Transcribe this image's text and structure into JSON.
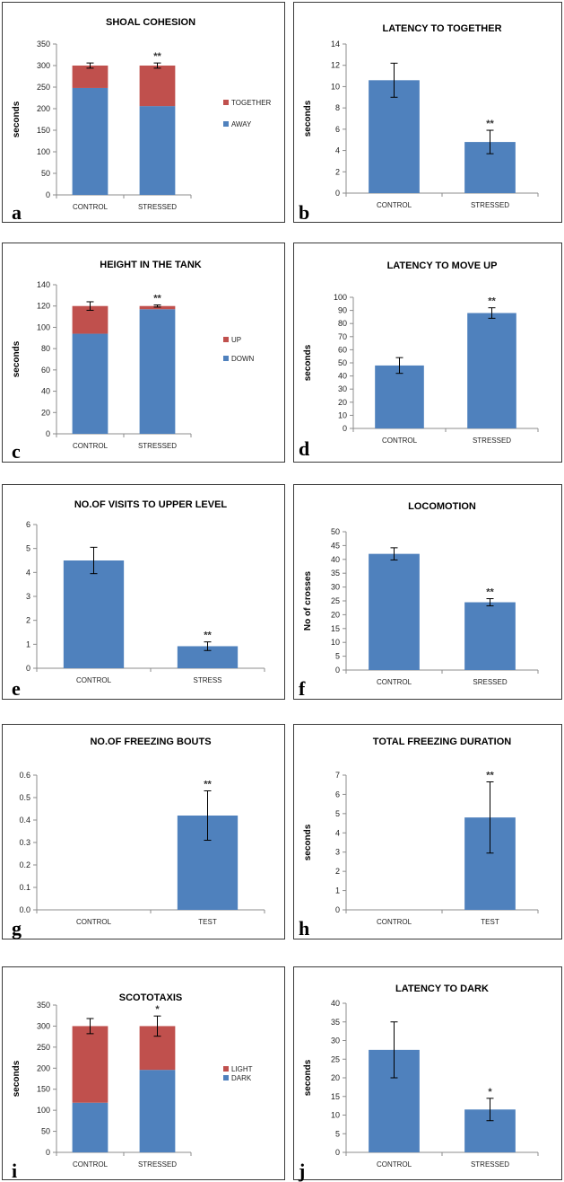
{
  "colors": {
    "bar": "#4f81bd",
    "bar_top": "#c0504d",
    "axis": "#8c8c8c",
    "error": "#000000"
  },
  "chart_data": [
    {
      "panel": "a",
      "type": "bar",
      "stacked": true,
      "title": "SHOAL COHESION",
      "ylabel": "seconds",
      "categories": [
        "CONTROL",
        "STRESSED"
      ],
      "ylim": [
        0,
        350
      ],
      "ystep": 50,
      "series": [
        {
          "name": "AWAY",
          "values": [
            248,
            206
          ]
        },
        {
          "name": "TOGETHER",
          "values": [
            52,
            94
          ]
        }
      ],
      "error": [
        6,
        6
      ],
      "sig": [
        "",
        "**"
      ],
      "legend": "right"
    },
    {
      "panel": "b",
      "type": "bar",
      "title": "LATENCY TO TOGETHER",
      "ylabel": "seconds",
      "categories": [
        "CONTROL",
        "STRESSED"
      ],
      "ylim": [
        0,
        14
      ],
      "ystep": 2,
      "series": [
        {
          "values": [
            10.6,
            4.8
          ]
        }
      ],
      "error": [
        1.6,
        1.1
      ],
      "sig": [
        "",
        "**"
      ]
    },
    {
      "panel": "c",
      "type": "bar",
      "stacked": true,
      "title": "HEIGHT IN THE TANK",
      "ylabel": "seconds",
      "categories": [
        "CONTROL",
        "STRESSED"
      ],
      "ylim": [
        0,
        140
      ],
      "ystep": 20,
      "series": [
        {
          "name": "DOWN",
          "values": [
            94,
            117
          ]
        },
        {
          "name": "UP",
          "values": [
            26,
            3
          ]
        }
      ],
      "error": [
        4,
        1
      ],
      "sig": [
        "",
        "**"
      ],
      "legend": "right"
    },
    {
      "panel": "d",
      "type": "bar",
      "title": "LATENCY TO MOVE UP",
      "ylabel": "seconds",
      "categories": [
        "CONTROL",
        "STRESSED"
      ],
      "ylim": [
        0,
        100
      ],
      "ystep": 10,
      "series": [
        {
          "values": [
            48,
            88
          ]
        }
      ],
      "error": [
        6,
        4
      ],
      "sig": [
        "",
        "**"
      ]
    },
    {
      "panel": "e",
      "type": "bar",
      "title": "NO.OF VISITS TO UPPER LEVEL",
      "ylabel": "",
      "categories": [
        "CONTROL",
        "STRESS"
      ],
      "ylim": [
        0,
        6
      ],
      "ystep": 1,
      "series": [
        {
          "values": [
            4.5,
            0.92
          ]
        }
      ],
      "error": [
        0.55,
        0.18
      ],
      "sig": [
        "",
        "**"
      ]
    },
    {
      "panel": "f",
      "type": "bar",
      "title": "LOCOMOTION",
      "ylabel": "No of crosses",
      "categories": [
        "CONTROL",
        "SRESSED"
      ],
      "ylim": [
        0,
        50
      ],
      "ystep": 5,
      "series": [
        {
          "values": [
            42,
            24.5
          ]
        }
      ],
      "error": [
        2.2,
        1.3
      ],
      "sig": [
        "",
        "**"
      ]
    },
    {
      "panel": "g",
      "type": "bar",
      "title": "NO.OF FREEZING BOUTS",
      "ylabel": "",
      "categories": [
        "CONTROL",
        "TEST"
      ],
      "ylim": [
        0,
        0.6
      ],
      "ystep": 0.1,
      "series": [
        {
          "values": [
            0,
            0.42
          ]
        }
      ],
      "error": [
        0,
        0.11
      ],
      "sig": [
        "",
        "**"
      ]
    },
    {
      "panel": "h",
      "type": "bar",
      "title": "TOTAL FREEZING DURATION",
      "ylabel": "seconds",
      "categories": [
        "CONTROL",
        "TEST"
      ],
      "ylim": [
        0,
        7
      ],
      "ystep": 1,
      "series": [
        {
          "values": [
            0,
            4.8
          ]
        }
      ],
      "error": [
        0,
        1.85
      ],
      "sig": [
        "",
        "**"
      ]
    },
    {
      "panel": "i",
      "type": "bar",
      "stacked": true,
      "title": "SCOTOTAXIS",
      "ylabel": "seconds",
      "categories": [
        "CONTROL",
        "STRESSED"
      ],
      "ylim": [
        0,
        350
      ],
      "ystep": 50,
      "series": [
        {
          "name": "DARK",
          "values": [
            118,
            196
          ]
        },
        {
          "name": "LIGHT",
          "values": [
            182,
            104
          ]
        }
      ],
      "error": [
        18,
        24
      ],
      "sig": [
        "",
        "*"
      ],
      "legend": "right"
    },
    {
      "panel": "j",
      "type": "bar",
      "title": "LATENCY TO DARK",
      "ylabel": "seconds",
      "categories": [
        "CONTROL",
        "STRESSED"
      ],
      "ylim": [
        0,
        40
      ],
      "ystep": 5,
      "series": [
        {
          "values": [
            27.5,
            11.5
          ]
        }
      ],
      "error": [
        7.5,
        3
      ],
      "sig": [
        "",
        "*"
      ]
    }
  ]
}
